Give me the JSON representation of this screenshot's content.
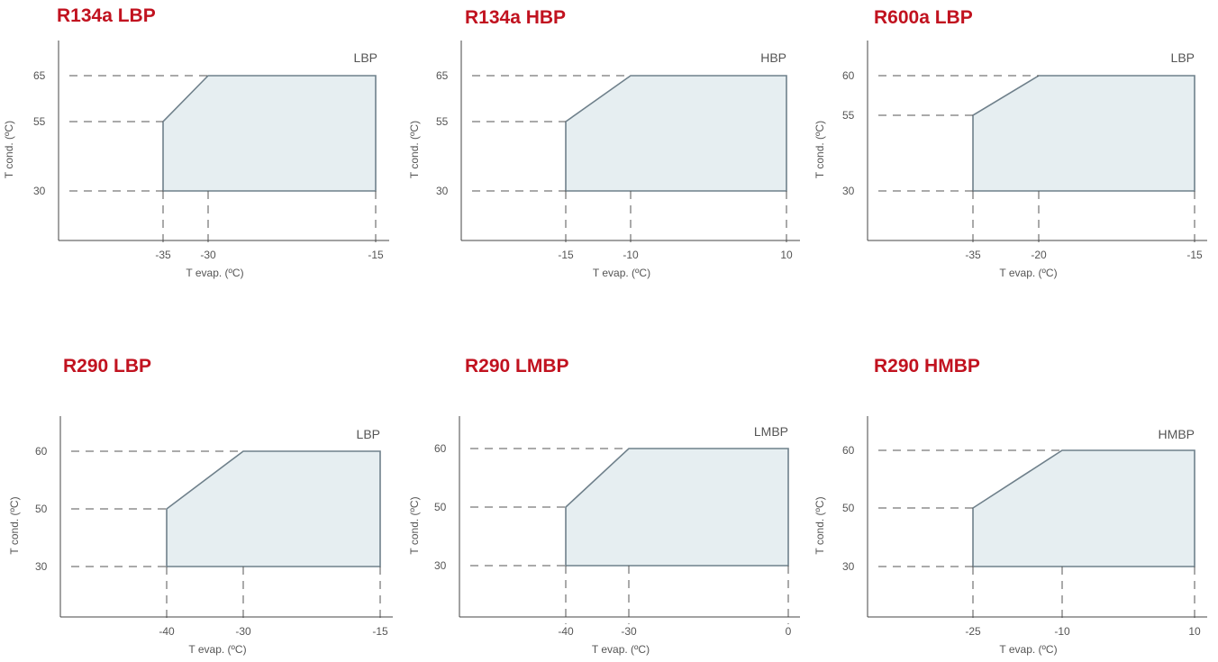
{
  "charts": [
    {
      "title": "R134a LBP",
      "chart_data": {
        "type": "area",
        "title": "R134a LBP",
        "region_label": "LBP",
        "xlabel": "T evap. (ºC)",
        "ylabel": "T cond. (ºC)",
        "x_ticks": [
          -35,
          -30,
          -15
        ],
        "y_ticks": [
          30,
          55,
          65
        ],
        "polygon": [
          {
            "x": -35,
            "y": 30
          },
          {
            "x": -35,
            "y": 55
          },
          {
            "x": -30,
            "y": 65
          },
          {
            "x": -15,
            "y": 65
          },
          {
            "x": -15,
            "y": 30
          }
        ],
        "fill_color": "#e6eef1",
        "line_color": "#6f808b",
        "grid": "dashed-guides"
      }
    },
    {
      "title": "R134a HBP",
      "chart_data": {
        "type": "area",
        "title": "R134a HBP",
        "region_label": "HBP",
        "xlabel": "T evap. (ºC)",
        "ylabel": "T cond. (ºC)",
        "x_ticks": [
          -15,
          -10,
          10
        ],
        "y_ticks": [
          30,
          55,
          65
        ],
        "polygon": [
          {
            "x": -15,
            "y": 30
          },
          {
            "x": -15,
            "y": 55
          },
          {
            "x": -10,
            "y": 65
          },
          {
            "x": 10,
            "y": 65
          },
          {
            "x": 10,
            "y": 30
          }
        ],
        "fill_color": "#e6eef1",
        "line_color": "#6f808b",
        "grid": "dashed-guides"
      }
    },
    {
      "title": "R600a LBP",
      "chart_data": {
        "type": "area",
        "title": "R600a LBP",
        "region_label": "LBP",
        "xlabel": "T evap. (ºC)",
        "ylabel": "T cond. (ºC)",
        "x_ticks": [
          -35,
          -20,
          -15
        ],
        "y_ticks": [
          30,
          55,
          60
        ],
        "polygon": [
          {
            "x": -35,
            "y": 30
          },
          {
            "x": -35,
            "y": 55
          },
          {
            "x": -20,
            "y": 60
          },
          {
            "x": -15,
            "y": 60
          },
          {
            "x": -15,
            "y": 30
          }
        ],
        "fill_color": "#e6eef1",
        "line_color": "#6f808b",
        "grid": "dashed-guides"
      }
    },
    {
      "title": "R290 LBP",
      "chart_data": {
        "type": "area",
        "title": "R290 LBP",
        "region_label": "LBP",
        "xlabel": "T evap. (ºC)",
        "ylabel": "T cond. (ºC)",
        "x_ticks": [
          -40,
          -30,
          -15
        ],
        "y_ticks": [
          30,
          50,
          60
        ],
        "polygon": [
          {
            "x": -40,
            "y": 30
          },
          {
            "x": -40,
            "y": 50
          },
          {
            "x": -30,
            "y": 60
          },
          {
            "x": -15,
            "y": 60
          },
          {
            "x": -15,
            "y": 30
          }
        ],
        "fill_color": "#e6eef1",
        "line_color": "#6f808b",
        "grid": "dashed-guides"
      }
    },
    {
      "title": "R290 LMBP",
      "chart_data": {
        "type": "area",
        "title": "R290 LMBP",
        "region_label": "LMBP",
        "xlabel": "T evap. (ºC)",
        "ylabel": "T cond. (ºC)",
        "x_ticks": [
          -40,
          -30,
          0
        ],
        "y_ticks": [
          30,
          50,
          60
        ],
        "polygon": [
          {
            "x": -40,
            "y": 30
          },
          {
            "x": -40,
            "y": 50
          },
          {
            "x": -30,
            "y": 60
          },
          {
            "x": 0,
            "y": 60
          },
          {
            "x": 0,
            "y": 30
          }
        ],
        "fill_color": "#e6eef1",
        "line_color": "#6f808b",
        "grid": "dashed-guides"
      }
    },
    {
      "title": "R290 HMBP",
      "chart_data": {
        "type": "area",
        "title": "R290 HMBP",
        "region_label": "HMBP",
        "xlabel": "T evap. (ºC)",
        "ylabel": "T cond. (ºC)",
        "x_ticks": [
          -25,
          -10,
          10
        ],
        "y_ticks": [
          30,
          50,
          60
        ],
        "polygon": [
          {
            "x": -25,
            "y": 30
          },
          {
            "x": -25,
            "y": 50
          },
          {
            "x": -10,
            "y": 60
          },
          {
            "x": 10,
            "y": 60
          },
          {
            "x": 10,
            "y": 30
          }
        ],
        "fill_color": "#e6eef1",
        "line_color": "#6f808b",
        "grid": "dashed-guides"
      }
    }
  ]
}
